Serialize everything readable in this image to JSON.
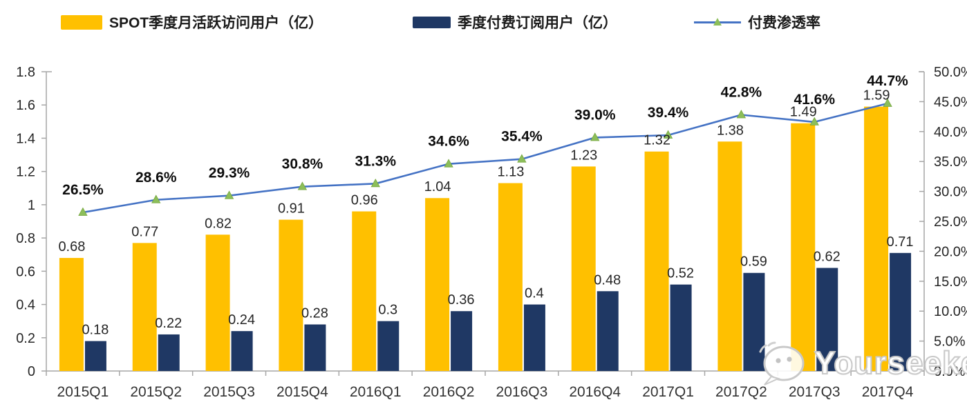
{
  "legend": [
    {
      "label": "SPOT季度月活跃访问用户（亿）",
      "color": "#FFC000"
    },
    {
      "label": "季度付费订阅用户（亿）",
      "color": "#1F3864"
    },
    {
      "label": "付费渗透率",
      "color": "#4472C4",
      "marker_color": "#8CBE5A"
    }
  ],
  "watermark": {
    "text": "Yourseeker"
  },
  "chart_data": {
    "type": "bar+line combo",
    "categories": [
      "2015Q1",
      "2015Q2",
      "2015Q3",
      "2015Q4",
      "2016Q1",
      "2016Q2",
      "2016Q3",
      "2016Q4",
      "2017Q1",
      "2017Q2",
      "2017Q3",
      "2017Q4"
    ],
    "series": [
      {
        "name": "SPOT季度月活跃访问用户（亿）",
        "type": "bar",
        "axis": "left",
        "color": "#FFC000",
        "values": [
          0.68,
          0.77,
          0.82,
          0.91,
          0.96,
          1.04,
          1.13,
          1.23,
          1.32,
          1.38,
          1.49,
          1.59
        ],
        "labels": [
          "0.68",
          "0.77",
          "0.82",
          "0.91",
          "0.96",
          "1.04",
          "1.13",
          "1.23",
          "1.32",
          "1.38",
          "1.49",
          "1.59"
        ]
      },
      {
        "name": "季度付费订阅用户（亿）",
        "type": "bar",
        "axis": "left",
        "color": "#1F3864",
        "values": [
          0.18,
          0.22,
          0.24,
          0.28,
          0.3,
          0.36,
          0.4,
          0.48,
          0.52,
          0.59,
          0.62,
          0.71
        ],
        "labels": [
          "0.18",
          "0.22",
          "0.24",
          "0.28",
          "0.3",
          "0.36",
          "0.4",
          "0.48",
          "0.52",
          "0.59",
          "0.62",
          "0.71"
        ]
      },
      {
        "name": "付费渗透率",
        "type": "line",
        "axis": "right",
        "color": "#4472C4",
        "marker_color": "#8CBE5A",
        "values": [
          26.5,
          28.6,
          29.3,
          30.8,
          31.3,
          34.6,
          35.4,
          39.0,
          39.4,
          42.8,
          41.6,
          44.7
        ],
        "labels": [
          "26.5%",
          "28.6%",
          "29.3%",
          "30.8%",
          "31.3%",
          "34.6%",
          "35.4%",
          "39.0%",
          "39.4%",
          "42.8%",
          "41.6%",
          "44.7%"
        ]
      }
    ],
    "left_axis": {
      "min": 0,
      "max": 1.8,
      "ticks": [
        "1.8",
        "1.6",
        "1.4",
        "1.2",
        "1",
        "0.8",
        "0.6",
        "0.4",
        "0.2",
        "0"
      ]
    },
    "right_axis": {
      "min": 0,
      "max": 50,
      "ticks": [
        "50.0%",
        "45.0%",
        "40.0%",
        "35.0%",
        "30.0%",
        "25.0%",
        "20.0%",
        "15.0%",
        "10.0%",
        "5.0%",
        "0.0%"
      ]
    },
    "grid": false,
    "legend_position": "top",
    "axis_color": "#A6A6A6"
  }
}
